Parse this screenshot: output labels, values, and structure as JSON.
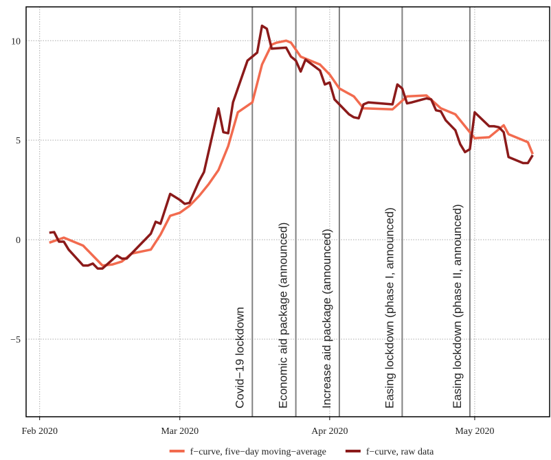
{
  "chart_data": {
    "type": "line",
    "xlim": [
      29.2,
      137.5
    ],
    "ylim": [
      -8.9,
      11.7
    ],
    "xticks": [
      {
        "value": 32,
        "label": "Feb 2020"
      },
      {
        "value": 61,
        "label": "Mar 2020"
      },
      {
        "value": 92,
        "label": "Apr 2020"
      },
      {
        "value": 122,
        "label": "May 2020"
      }
    ],
    "yticks": [
      {
        "value": -5,
        "label": "−5"
      },
      0,
      5,
      10
    ],
    "grid": true,
    "legend": "bottom",
    "series": [
      {
        "name": "f−curve, five−day moving−average",
        "color": "#f26b4f",
        "x": [
          34,
          37,
          41,
          43,
          45,
          47,
          49,
          51,
          53,
          55,
          57,
          59,
          61,
          63,
          65,
          67,
          69,
          71,
          73,
          76,
          78,
          80,
          81,
          83,
          84,
          86,
          88,
          90,
          92,
          94,
          97,
          99,
          105,
          108,
          112,
          115,
          118,
          122,
          125,
          128,
          129,
          133,
          134
        ],
        "values": [
          -0.15,
          0.1,
          -0.3,
          -0.8,
          -1.3,
          -1.25,
          -1.1,
          -0.7,
          -0.6,
          -0.5,
          0.25,
          1.2,
          1.35,
          1.7,
          2.2,
          2.8,
          3.5,
          4.7,
          6.4,
          6.9,
          8.8,
          9.8,
          9.9,
          10.0,
          9.9,
          9.2,
          9.0,
          8.8,
          8.3,
          7.6,
          7.2,
          6.6,
          6.55,
          7.2,
          7.25,
          6.6,
          6.3,
          5.1,
          5.15,
          5.75,
          5.3,
          4.9,
          4.3
        ]
      },
      {
        "name": "f−curve, raw data",
        "color": "#8b1a1a",
        "x": [
          34,
          35,
          36,
          37,
          38,
          41,
          42,
          43,
          44,
          45,
          48,
          49,
          50,
          53,
          55,
          56,
          57,
          59,
          61,
          62,
          63,
          65,
          66,
          69,
          70,
          71,
          72,
          75,
          77,
          78,
          79,
          80,
          83,
          84,
          85,
          86,
          87,
          90,
          91,
          92,
          93,
          94,
          96,
          97,
          98,
          99,
          100,
          105,
          106,
          107,
          108,
          109,
          112,
          113,
          114,
          115,
          116,
          118,
          119,
          120,
          121,
          122,
          125,
          126,
          127,
          128,
          129,
          132,
          133,
          134
        ],
        "values": [
          0.35,
          0.38,
          -0.1,
          -0.1,
          -0.5,
          -1.3,
          -1.3,
          -1.2,
          -1.45,
          -1.45,
          -0.8,
          -0.95,
          -0.95,
          -0.2,
          0.3,
          0.9,
          0.8,
          2.3,
          2.0,
          1.8,
          1.85,
          2.95,
          3.4,
          6.6,
          5.4,
          5.35,
          6.9,
          9.0,
          9.4,
          10.75,
          10.6,
          9.6,
          9.65,
          9.2,
          9.0,
          8.45,
          9.05,
          8.5,
          7.8,
          7.9,
          7.05,
          6.8,
          6.3,
          6.15,
          6.1,
          6.8,
          6.9,
          6.8,
          7.8,
          7.6,
          6.85,
          6.9,
          7.1,
          7.05,
          6.5,
          6.45,
          6.0,
          5.5,
          4.8,
          4.4,
          4.55,
          6.4,
          5.7,
          5.7,
          5.65,
          5.4,
          4.15,
          3.85,
          3.85,
          4.25
        ]
      }
    ],
    "annotations": [
      {
        "x": 76,
        "text": "Covid−19 lockdown"
      },
      {
        "x": 85,
        "text": "Economic aid package (announced)"
      },
      {
        "x": 94,
        "text": "Increase aid package (announced)"
      },
      {
        "x": 107,
        "text": "Easing lockdown (phase I, announced)"
      },
      {
        "x": 121,
        "text": "Easing lockdown (phase II, announced)"
      }
    ]
  }
}
